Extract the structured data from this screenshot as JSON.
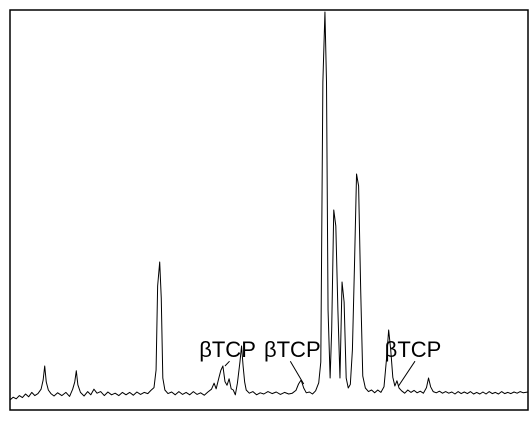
{
  "chart_data": {
    "type": "line",
    "title": "",
    "xlabel": "",
    "ylabel": "",
    "grid": false,
    "legend": "none",
    "line_color": "#000000",
    "xlim": [
      0,
      100
    ],
    "ylim": [
      0,
      100
    ],
    "series": [
      {
        "points": [
          [
            0.0,
            2.5
          ],
          [
            0.6,
            3.2
          ],
          [
            1.2,
            2.8
          ],
          [
            1.8,
            3.6
          ],
          [
            2.4,
            3.1
          ],
          [
            3.0,
            4.0
          ],
          [
            3.6,
            3.3
          ],
          [
            4.2,
            4.4
          ],
          [
            4.8,
            3.6
          ],
          [
            5.4,
            4.1
          ],
          [
            6.0,
            5.2
          ],
          [
            6.4,
            7.5
          ],
          [
            6.7,
            11.0
          ],
          [
            7.0,
            7.0
          ],
          [
            7.4,
            5.0
          ],
          [
            7.9,
            4.1
          ],
          [
            8.5,
            3.5
          ],
          [
            9.2,
            4.3
          ],
          [
            10.0,
            3.6
          ],
          [
            10.8,
            4.4
          ],
          [
            11.5,
            3.4
          ],
          [
            12.1,
            5.2
          ],
          [
            12.5,
            7.0
          ],
          [
            12.8,
            9.8
          ],
          [
            13.1,
            6.3
          ],
          [
            13.6,
            4.4
          ],
          [
            14.3,
            3.5
          ],
          [
            15.0,
            4.6
          ],
          [
            15.6,
            3.8
          ],
          [
            16.2,
            5.2
          ],
          [
            16.8,
            4.2
          ],
          [
            17.5,
            4.6
          ],
          [
            18.2,
            3.6
          ],
          [
            18.9,
            4.5
          ],
          [
            19.6,
            3.8
          ],
          [
            20.3,
            4.2
          ],
          [
            21.0,
            3.6
          ],
          [
            21.7,
            4.4
          ],
          [
            22.4,
            3.8
          ],
          [
            23.1,
            4.4
          ],
          [
            23.8,
            3.7
          ],
          [
            24.5,
            4.5
          ],
          [
            25.2,
            3.9
          ],
          [
            25.9,
            4.4
          ],
          [
            26.6,
            4.1
          ],
          [
            27.2,
            4.9
          ],
          [
            27.8,
            5.6
          ],
          [
            28.2,
            10.0
          ],
          [
            28.5,
            31.0
          ],
          [
            28.9,
            37.0
          ],
          [
            29.2,
            28.0
          ],
          [
            29.5,
            8.0
          ],
          [
            29.9,
            5.0
          ],
          [
            30.5,
            4.1
          ],
          [
            31.2,
            4.5
          ],
          [
            31.9,
            3.8
          ],
          [
            32.6,
            4.6
          ],
          [
            33.3,
            3.9
          ],
          [
            34.0,
            4.4
          ],
          [
            34.7,
            3.8
          ],
          [
            35.4,
            4.6
          ],
          [
            36.1,
            3.9
          ],
          [
            36.8,
            4.3
          ],
          [
            37.5,
            3.7
          ],
          [
            38.2,
            4.5
          ],
          [
            38.9,
            5.2
          ],
          [
            39.4,
            6.7
          ],
          [
            39.8,
            5.3
          ],
          [
            40.3,
            7.9
          ],
          [
            40.7,
            9.9
          ],
          [
            41.1,
            11.0
          ],
          [
            41.5,
            7.1
          ],
          [
            41.9,
            6.2
          ],
          [
            42.3,
            7.8
          ],
          [
            42.7,
            5.3
          ],
          [
            43.1,
            5.0
          ],
          [
            43.5,
            3.8
          ],
          [
            43.9,
            6.7
          ],
          [
            44.4,
            12.1
          ],
          [
            44.7,
            16.0
          ],
          [
            45.0,
            11.0
          ],
          [
            45.3,
            7.0
          ],
          [
            45.6,
            5.0
          ],
          [
            46.2,
            4.2
          ],
          [
            46.9,
            4.6
          ],
          [
            47.6,
            3.8
          ],
          [
            48.3,
            4.3
          ],
          [
            49.0,
            4.0
          ],
          [
            49.8,
            4.6
          ],
          [
            50.6,
            4.1
          ],
          [
            51.4,
            4.5
          ],
          [
            52.2,
            3.9
          ],
          [
            53.0,
            4.4
          ],
          [
            53.8,
            4.0
          ],
          [
            54.5,
            4.2
          ],
          [
            55.2,
            4.9
          ],
          [
            55.7,
            6.5
          ],
          [
            56.2,
            7.5
          ],
          [
            56.7,
            5.5
          ],
          [
            57.2,
            4.3
          ],
          [
            57.8,
            4.5
          ],
          [
            58.4,
            4.0
          ],
          [
            59.0,
            4.8
          ],
          [
            59.6,
            6.8
          ],
          [
            60.0,
            12.0
          ],
          [
            60.4,
            82.0
          ],
          [
            60.8,
            99.5
          ],
          [
            61.1,
            82.0
          ],
          [
            61.4,
            25.0
          ],
          [
            61.8,
            8.0
          ],
          [
            62.1,
            20.0
          ],
          [
            62.5,
            50.0
          ],
          [
            62.9,
            46.0
          ],
          [
            63.3,
            25.0
          ],
          [
            63.7,
            8.0
          ],
          [
            64.1,
            32.0
          ],
          [
            64.5,
            27.0
          ],
          [
            64.9,
            8.0
          ],
          [
            65.3,
            5.5
          ],
          [
            65.7,
            6.4
          ],
          [
            66.1,
            15.0
          ],
          [
            66.5,
            36.0
          ],
          [
            66.9,
            59.0
          ],
          [
            67.3,
            56.0
          ],
          [
            67.7,
            30.0
          ],
          [
            68.1,
            8.5
          ],
          [
            68.6,
            5.5
          ],
          [
            69.2,
            4.6
          ],
          [
            69.8,
            5.0
          ],
          [
            70.4,
            4.3
          ],
          [
            71.0,
            5.0
          ],
          [
            71.6,
            4.4
          ],
          [
            72.2,
            5.8
          ],
          [
            72.7,
            13.0
          ],
          [
            73.1,
            20.0
          ],
          [
            73.5,
            15.0
          ],
          [
            73.9,
            8.2
          ],
          [
            74.3,
            6.0
          ],
          [
            74.7,
            7.3
          ],
          [
            75.1,
            5.5
          ],
          [
            75.6,
            4.8
          ],
          [
            76.2,
            4.2
          ],
          [
            76.8,
            5.0
          ],
          [
            77.4,
            4.4
          ],
          [
            78.0,
            4.9
          ],
          [
            78.6,
            4.3
          ],
          [
            79.2,
            4.7
          ],
          [
            79.8,
            4.2
          ],
          [
            80.4,
            5.6
          ],
          [
            80.8,
            8.0
          ],
          [
            81.2,
            5.8
          ],
          [
            81.7,
            4.6
          ],
          [
            82.3,
            4.3
          ],
          [
            82.9,
            4.7
          ],
          [
            83.5,
            4.2
          ],
          [
            84.1,
            4.6
          ],
          [
            84.7,
            4.2
          ],
          [
            85.3,
            4.5
          ],
          [
            85.9,
            4.0
          ],
          [
            86.5,
            4.6
          ],
          [
            87.1,
            4.1
          ],
          [
            87.7,
            4.5
          ],
          [
            88.3,
            4.1
          ],
          [
            88.9,
            4.6
          ],
          [
            89.5,
            4.0
          ],
          [
            90.1,
            4.4
          ],
          [
            90.7,
            4.0
          ],
          [
            91.3,
            4.5
          ],
          [
            91.9,
            4.0
          ],
          [
            92.5,
            4.6
          ],
          [
            93.1,
            4.1
          ],
          [
            93.7,
            4.4
          ],
          [
            94.3,
            4.0
          ],
          [
            94.9,
            4.6
          ],
          [
            95.5,
            4.1
          ],
          [
            96.1,
            4.4
          ],
          [
            96.7,
            4.1
          ],
          [
            97.3,
            4.5
          ],
          [
            97.9,
            4.2
          ],
          [
            98.5,
            4.6
          ],
          [
            99.1,
            4.3
          ],
          [
            100.0,
            4.5
          ]
        ]
      }
    ],
    "annotations": [
      {
        "text": "βTCP",
        "x": 41.5,
        "y": 11.0,
        "label_anchor_x": 42.0,
        "label_y": 13.2
      },
      {
        "text": "βTCP",
        "x": 56.7,
        "y": 6.5,
        "label_anchor_x": 54.5,
        "label_y": 13.2
      },
      {
        "text": "βTCP",
        "x": 75.0,
        "y": 6.0,
        "label_anchor_x": 77.8,
        "label_y": 13.2
      }
    ]
  }
}
